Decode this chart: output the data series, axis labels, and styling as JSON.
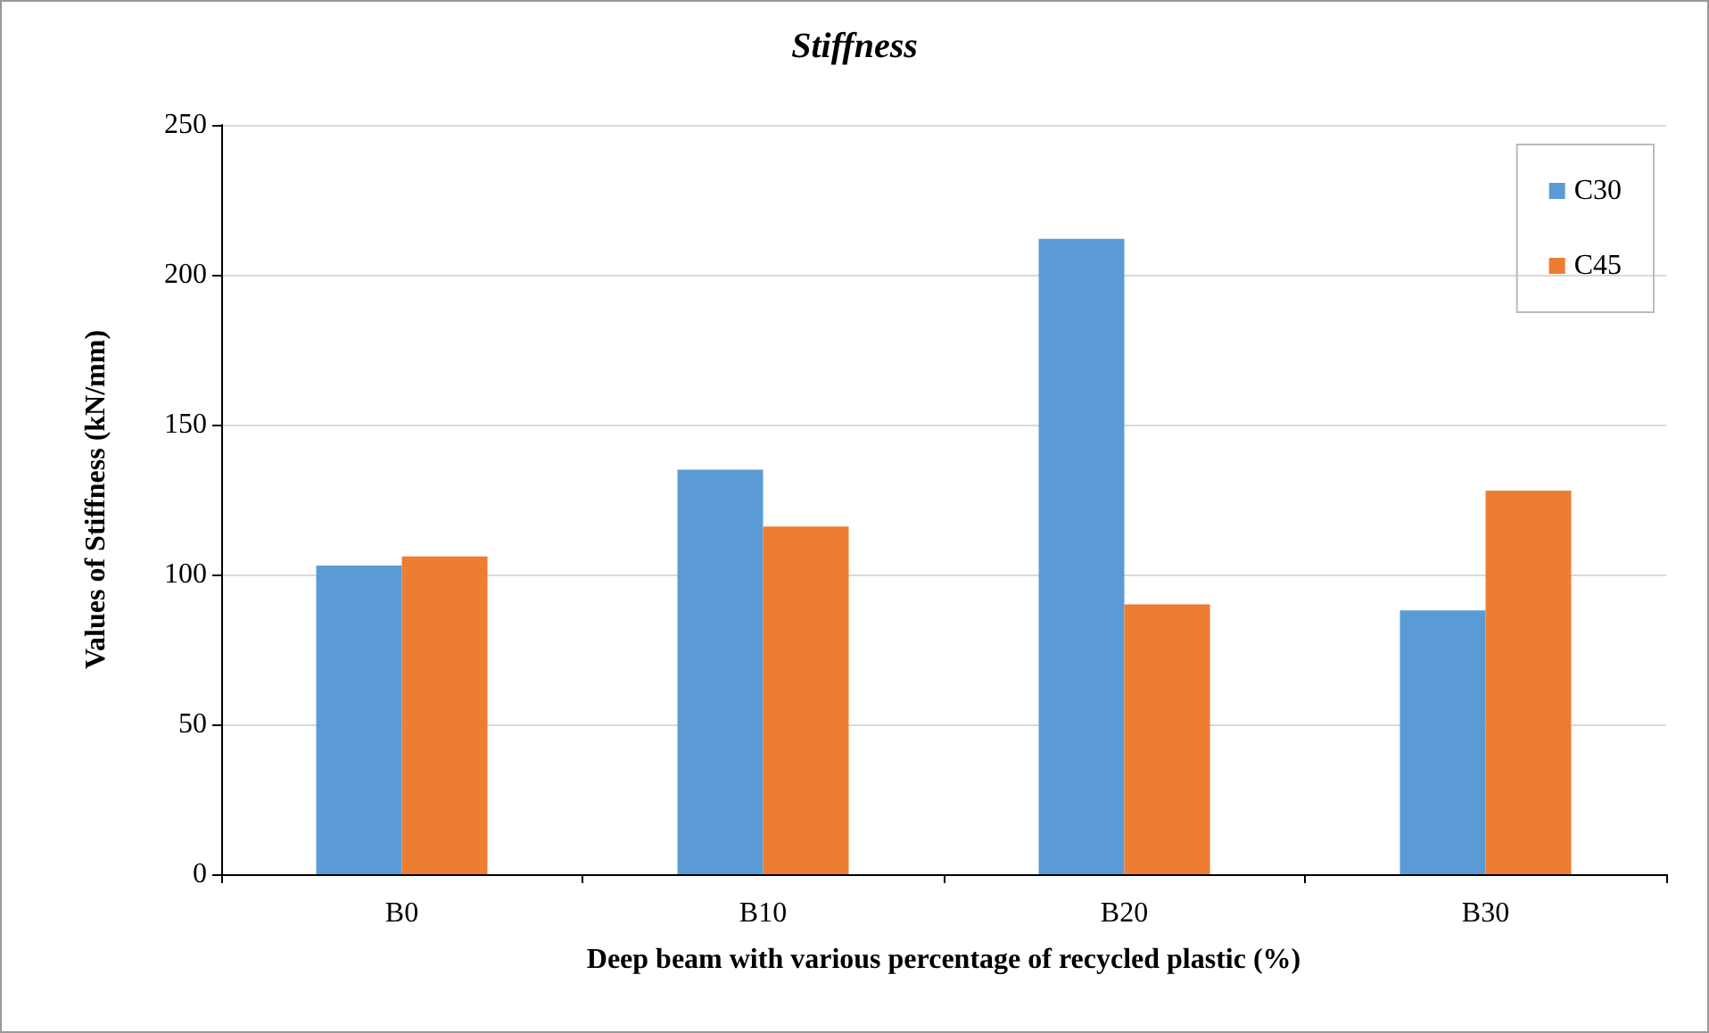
{
  "chart_data": {
    "type": "bar",
    "title": "Stiffness",
    "xlabel": "Deep beam with various percentage of recycled plastic (%)",
    "ylabel": "Values of Stiffness (kN/mm)",
    "categories": [
      "B0",
      "B10",
      "B20",
      "B30"
    ],
    "series": [
      {
        "name": "C30",
        "color": "#5b9bd5",
        "values": [
          103,
          135,
          212,
          88
        ]
      },
      {
        "name": "C45",
        "color": "#ed7d31",
        "values": [
          106,
          116,
          90,
          128
        ]
      }
    ],
    "ylim": [
      0,
      250
    ],
    "yticks": [
      0,
      50,
      100,
      150,
      200,
      250
    ],
    "grid": "y",
    "legend": "top right"
  }
}
